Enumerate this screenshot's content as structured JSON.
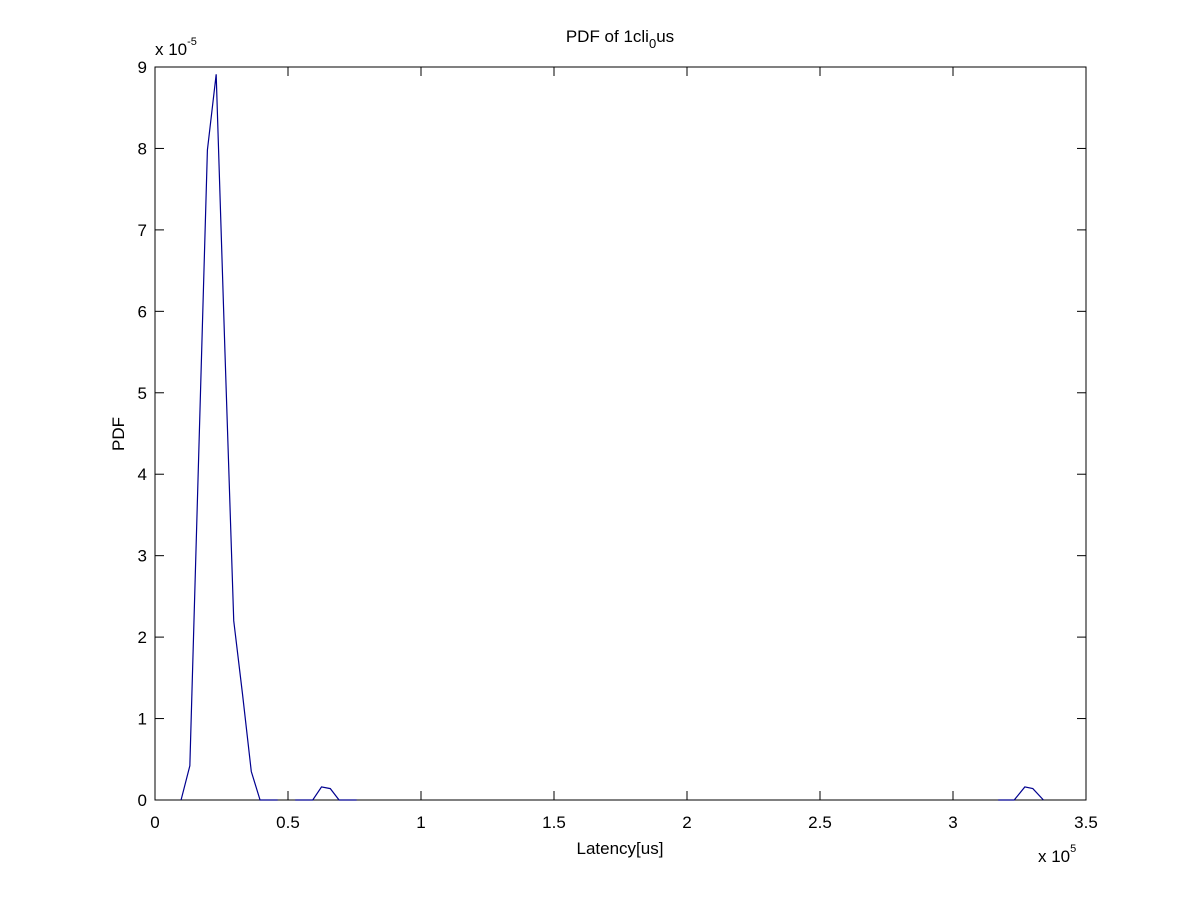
{
  "chart_data": {
    "type": "line",
    "title_parts": [
      "PDF of 1cli",
      "0",
      "us"
    ],
    "xlabel": "Latency[us]",
    "ylabel": "PDF",
    "x_multiplier": {
      "base": "x 10",
      "exponent": "5"
    },
    "y_multiplier": {
      "base": "x 10",
      "exponent": "-5"
    },
    "xlim": [
      0,
      3.5
    ],
    "ylim": [
      0,
      9
    ],
    "xticks": [
      0,
      0.5,
      1,
      1.5,
      2,
      2.5,
      3,
      3.5
    ],
    "yticks": [
      0,
      1,
      2,
      3,
      4,
      5,
      6,
      7,
      8,
      9
    ],
    "x": [
      0.098,
      0.131,
      0.164,
      0.197,
      0.23,
      0.263,
      0.296,
      0.329,
      0.362,
      0.395,
      0.428,
      0.461,
      0.494,
      0.527,
      0.56,
      0.593,
      0.626,
      0.659,
      0.692,
      0.725,
      0.758,
      3.0,
      3.17,
      3.2,
      3.23,
      3.27,
      3.3,
      3.34
    ],
    "series": [
      {
        "color": "#00008f",
        "values": [
          0,
          0.42,
          4.2,
          7.98,
          8.91,
          5.5,
          2.2,
          1.3,
          0.35,
          0,
          0,
          0,
          null,
          0,
          0,
          0,
          0.16,
          0.14,
          0,
          0,
          0,
          null,
          0,
          0,
          0,
          0.16,
          0.14,
          0
        ]
      }
    ]
  }
}
